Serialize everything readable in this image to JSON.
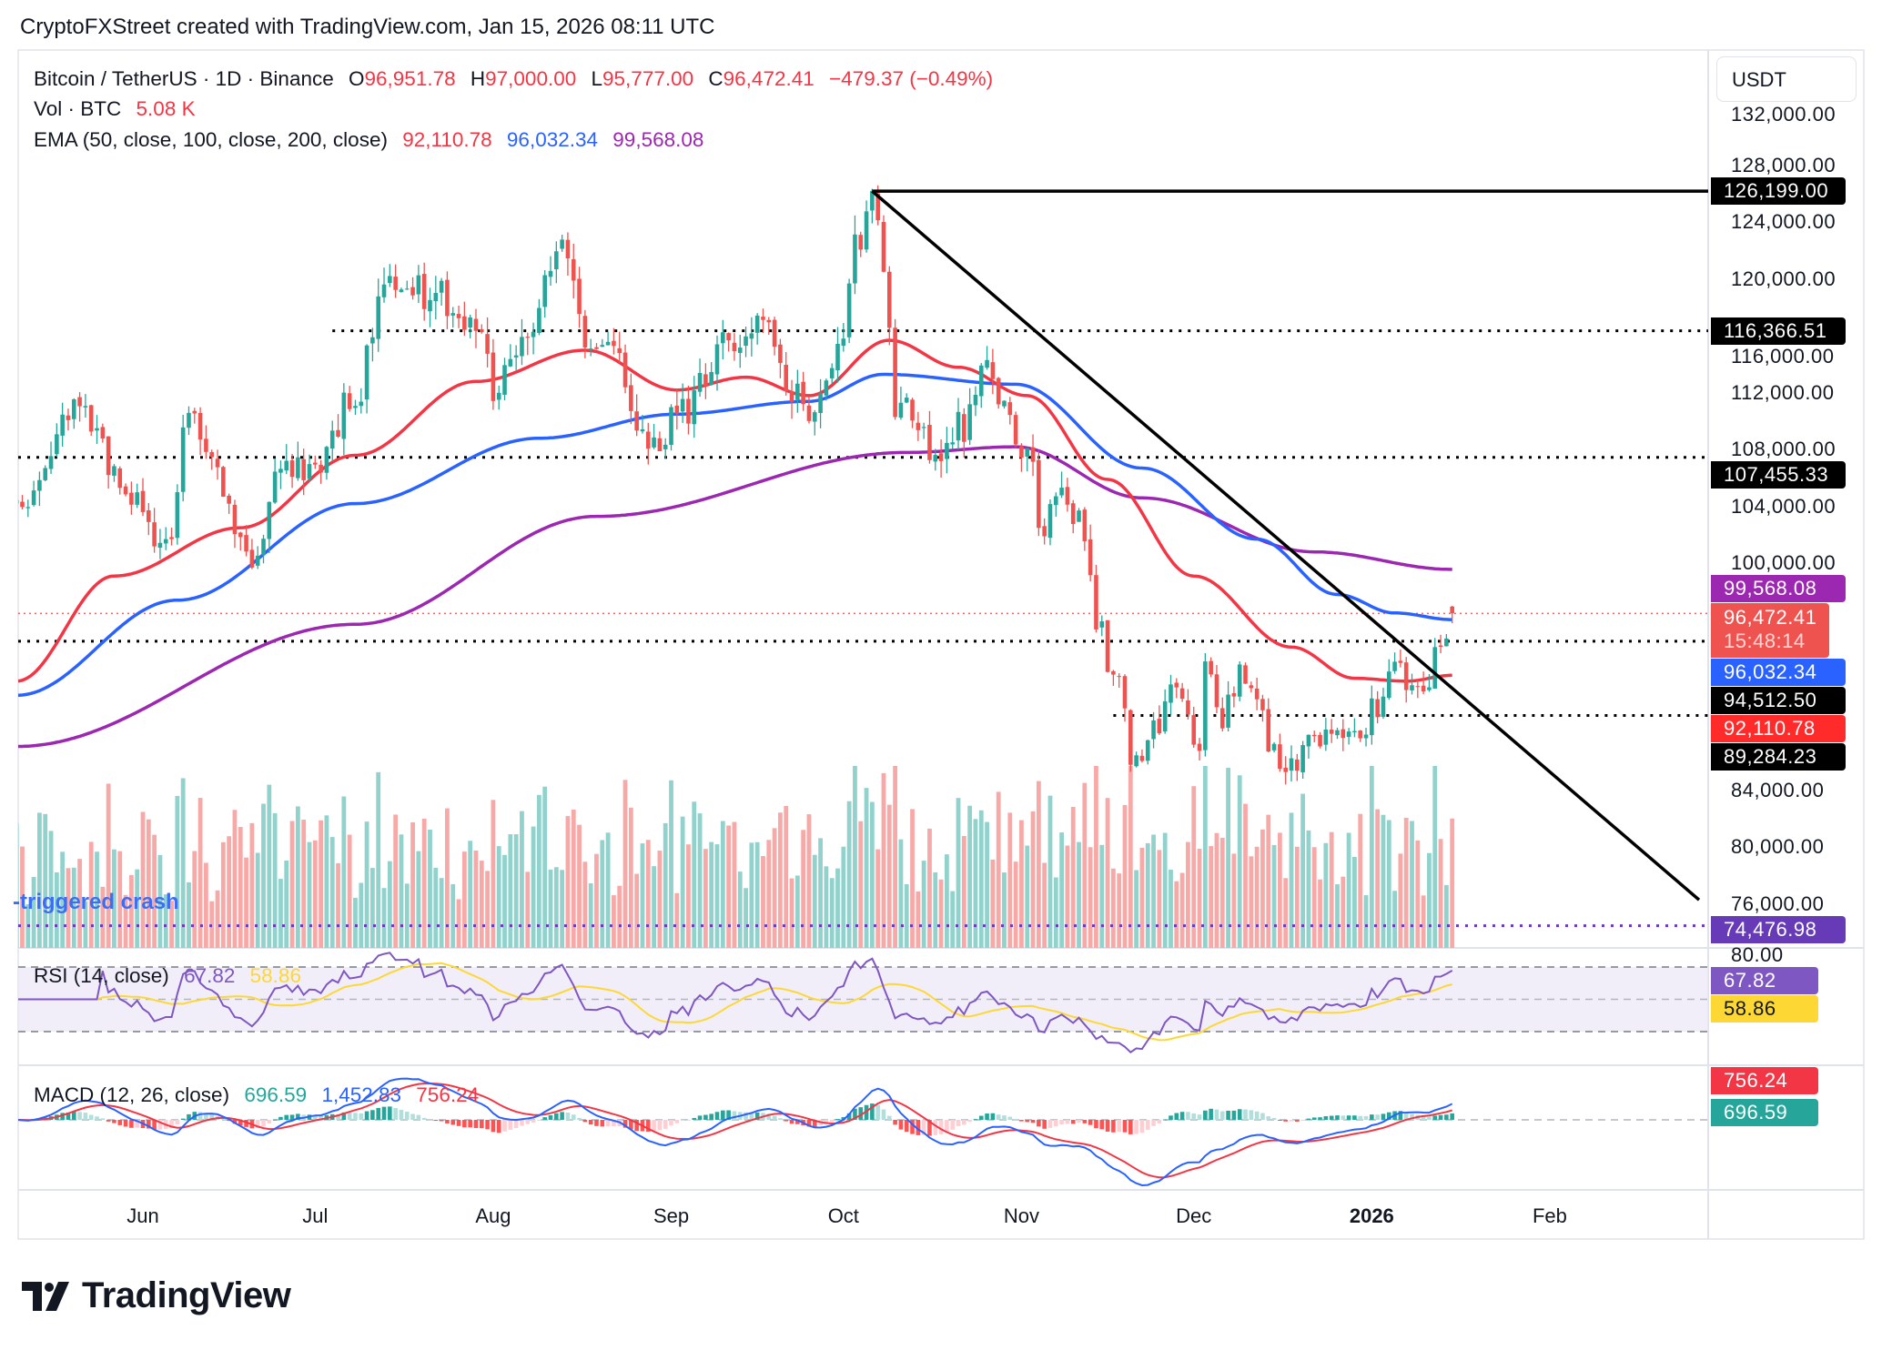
{
  "header": {
    "attribution": "CryptoFXStreet created with TradingView.com, Jan 15, 2026 08:11 UTC"
  },
  "legend": {
    "symbol": "Bitcoin / TetherUS · 1D · Binance",
    "o_label": "O",
    "o": "96,951.78",
    "h_label": "H",
    "h": "97,000.00",
    "l_label": "L",
    "l": "95,777.00",
    "c_label": "C",
    "c": "96,472.41",
    "change": "−479.37 (−0.49%)",
    "vol_label": "Vol · BTC",
    "vol": "5.08 K",
    "ema_label": "EMA (50, close, 100, close, 200, close)",
    "ema50": "92,110.78",
    "ema100": "96,032.34",
    "ema200": "99,568.08"
  },
  "price_axis": {
    "currency": "USDT",
    "ticks": [
      "132,000.00",
      "128,000.00",
      "124,000.00",
      "120,000.00",
      "116,000.00",
      "112,000.00",
      "108,000.00",
      "104,000.00",
      "100,000.00",
      "84,000.00",
      "80,000.00",
      "76,000.00"
    ],
    "rsi_tick": "80.00",
    "badges": [
      {
        "text": "126,199.00",
        "price": 126199,
        "bg": "#000000",
        "fg": "#ffffff"
      },
      {
        "text": "116,366.51",
        "price": 116366.51,
        "bg": "#000000",
        "fg": "#ffffff"
      },
      {
        "text": "107,455.33",
        "price": 107455.33,
        "bg": "#000000",
        "fg": "#ffffff"
      },
      {
        "text": "99,568.08",
        "price": 99568.08,
        "bg": "#9c27b0",
        "fg": "#ffffff"
      },
      {
        "text": "96,032.34",
        "price": 95650,
        "bg": "#2962ff",
        "fg": "#ffffff"
      },
      {
        "text": "94,512.50",
        "price": 93990,
        "bg": "#000000",
        "fg": "#ffffff"
      },
      {
        "text": "92,110.78",
        "price": 92330,
        "bg": "#ff2a2a",
        "fg": "#ffffff"
      },
      {
        "text": "89,284.23",
        "price": 90670,
        "bg": "#000000",
        "fg": "#ffffff"
      },
      {
        "text": "74,476.98",
        "price": 74476.98,
        "bg": "#673ab7",
        "fg": "#ffffff"
      }
    ],
    "last_price_badge": {
      "text": "96,472.41",
      "countdown": "15:48:14",
      "price": 96472.41,
      "bg": "#ef5350"
    }
  },
  "time_axis": [
    {
      "label": "Jun",
      "date": "2025-06-01"
    },
    {
      "label": "Jul",
      "date": "2025-07-01"
    },
    {
      "label": "Aug",
      "date": "2025-08-01"
    },
    {
      "label": "Sep",
      "date": "2025-09-01"
    },
    {
      "label": "Oct",
      "date": "2025-10-01"
    },
    {
      "label": "Nov",
      "date": "2025-11-01"
    },
    {
      "label": "Dec",
      "date": "2025-12-01"
    },
    {
      "label": "2026",
      "date": "2026-01-01",
      "bold": true
    },
    {
      "label": "Feb",
      "date": "2026-02-01"
    }
  ],
  "annotation": "-triggered crash",
  "rsi": {
    "label": "RSI (14, close)",
    "value": "67.82",
    "ma": "58.86",
    "value_badge": "67.82",
    "ma_badge": "58.86",
    "colors": {
      "rsi": "#7e57c2",
      "ma": "#fdd835"
    }
  },
  "macd": {
    "label": "MACD (12, 26, close)",
    "hist": "696.59",
    "macd": "1,452.83",
    "signal": "756.24",
    "hist_badge": "696.59",
    "signal_badge": "756.24",
    "colors": {
      "macd": "#2962ff",
      "signal": "#f23645",
      "hist_up": "#26a69a",
      "hist_down": "#ff5252"
    }
  },
  "brand": "TradingView",
  "chart_data": {
    "type": "candlestick",
    "title": "Bitcoin / TetherUS · 1D · Binance",
    "ylim": [
      72000,
      133000
    ],
    "colors": {
      "up": "#26a69a",
      "down": "#ef5350",
      "ema50": "#f23645",
      "ema100": "#2962ff",
      "ema200": "#9c27b0"
    },
    "last_candle": {
      "date": "2026-01-15",
      "open": 96951.78,
      "high": 97000.0,
      "low": 95777.0,
      "close": 96472.41
    },
    "close_path": [
      {
        "date": "2025-05-10",
        "close": 104200
      },
      {
        "date": "2025-05-21",
        "close": 110900
      },
      {
        "date": "2025-05-30",
        "close": 104200
      },
      {
        "date": "2025-06-05",
        "close": 101200
      },
      {
        "date": "2025-06-09",
        "close": 110100
      },
      {
        "date": "2025-06-21",
        "close": 100000
      },
      {
        "date": "2025-06-24",
        "close": 105900
      },
      {
        "date": "2025-07-01",
        "close": 107100
      },
      {
        "date": "2025-07-08",
        "close": 111800
      },
      {
        "date": "2025-07-13",
        "close": 119400
      },
      {
        "date": "2025-07-21",
        "close": 119000
      },
      {
        "date": "2025-07-29",
        "close": 116900
      },
      {
        "date": "2025-08-01",
        "close": 112600
      },
      {
        "date": "2025-08-06",
        "close": 116000
      },
      {
        "date": "2025-08-13",
        "close": 123200
      },
      {
        "date": "2025-08-18",
        "close": 114300
      },
      {
        "date": "2025-08-22",
        "close": 115200
      },
      {
        "date": "2025-08-28",
        "close": 108000
      },
      {
        "date": "2025-09-03",
        "close": 110500
      },
      {
        "date": "2025-09-11",
        "close": 116000
      },
      {
        "date": "2025-09-17",
        "close": 116400
      },
      {
        "date": "2025-09-22",
        "close": 112200
      },
      {
        "date": "2025-09-25",
        "close": 109300
      },
      {
        "date": "2025-09-30",
        "close": 114300
      },
      {
        "date": "2025-10-03",
        "close": 122800
      },
      {
        "date": "2025-10-06",
        "close": 124900
      },
      {
        "date": "2025-10-08",
        "close": 121500
      },
      {
        "date": "2025-10-10",
        "close": 111000
      },
      {
        "date": "2025-10-14",
        "close": 110100
      },
      {
        "date": "2025-10-17",
        "close": 107100
      },
      {
        "date": "2025-10-22",
        "close": 109700
      },
      {
        "date": "2025-10-26",
        "close": 114300
      },
      {
        "date": "2025-10-30",
        "close": 109700
      },
      {
        "date": "2025-11-03",
        "close": 107100
      },
      {
        "date": "2025-11-04",
        "close": 101700
      },
      {
        "date": "2025-11-08",
        "close": 105000
      },
      {
        "date": "2025-11-12",
        "close": 102500
      },
      {
        "date": "2025-11-14",
        "close": 95700
      },
      {
        "date": "2025-11-17",
        "close": 92400
      },
      {
        "date": "2025-11-21",
        "close": 85600
      },
      {
        "date": "2025-11-24",
        "close": 88100
      },
      {
        "date": "2025-11-28",
        "close": 91100
      },
      {
        "date": "2025-12-02",
        "close": 86800
      },
      {
        "date": "2025-12-03",
        "close": 92300
      },
      {
        "date": "2025-12-06",
        "close": 89200
      },
      {
        "date": "2025-12-09",
        "close": 92300
      },
      {
        "date": "2025-12-12",
        "close": 90000
      },
      {
        "date": "2025-12-15",
        "close": 86500
      },
      {
        "date": "2025-12-18",
        "close": 85600
      },
      {
        "date": "2025-12-22",
        "close": 88100
      },
      {
        "date": "2025-12-29",
        "close": 87300
      },
      {
        "date": "2026-01-02",
        "close": 90000
      },
      {
        "date": "2026-01-05",
        "close": 93600
      },
      {
        "date": "2026-01-08",
        "close": 90500
      },
      {
        "date": "2026-01-11",
        "close": 91300
      },
      {
        "date": "2026-01-13",
        "close": 95000
      },
      {
        "date": "2026-01-15",
        "close": 96472.41
      }
    ],
    "ema50": [
      {
        "date": "2025-05-10",
        "v": 91700
      },
      {
        "date": "2025-05-27",
        "v": 99100
      },
      {
        "date": "2025-06-18",
        "v": 102500
      },
      {
        "date": "2025-07-08",
        "v": 107600
      },
      {
        "date": "2025-07-29",
        "v": 112800
      },
      {
        "date": "2025-08-17",
        "v": 115000
      },
      {
        "date": "2025-09-02",
        "v": 112200
      },
      {
        "date": "2025-09-14",
        "v": 113100
      },
      {
        "date": "2025-09-25",
        "v": 111800
      },
      {
        "date": "2025-10-09",
        "v": 115700
      },
      {
        "date": "2025-10-21",
        "v": 113800
      },
      {
        "date": "2025-11-02",
        "v": 111800
      },
      {
        "date": "2025-11-16",
        "v": 105900
      },
      {
        "date": "2025-12-01",
        "v": 99100
      },
      {
        "date": "2025-12-18",
        "v": 94100
      },
      {
        "date": "2025-12-29",
        "v": 91900
      },
      {
        "date": "2026-01-07",
        "v": 91700
      },
      {
        "date": "2026-01-15",
        "v": 92110.78
      }
    ],
    "ema100": [
      {
        "date": "2025-05-10",
        "v": 90700
      },
      {
        "date": "2025-06-07",
        "v": 97400
      },
      {
        "date": "2025-07-08",
        "v": 104200
      },
      {
        "date": "2025-08-09",
        "v": 108800
      },
      {
        "date": "2025-09-02",
        "v": 110500
      },
      {
        "date": "2025-09-25",
        "v": 111400
      },
      {
        "date": "2025-10-08",
        "v": 113300
      },
      {
        "date": "2025-10-31",
        "v": 112600
      },
      {
        "date": "2025-11-22",
        "v": 106700
      },
      {
        "date": "2025-12-12",
        "v": 101700
      },
      {
        "date": "2025-12-26",
        "v": 97800
      },
      {
        "date": "2026-01-05",
        "v": 96500
      },
      {
        "date": "2026-01-15",
        "v": 96032.34
      }
    ],
    "ema200": [
      {
        "date": "2025-05-10",
        "v": 87100
      },
      {
        "date": "2025-07-08",
        "v": 95700
      },
      {
        "date": "2025-08-19",
        "v": 103300
      },
      {
        "date": "2025-10-12",
        "v": 107800
      },
      {
        "date": "2025-10-31",
        "v": 108200
      },
      {
        "date": "2025-11-22",
        "v": 104600
      },
      {
        "date": "2025-12-22",
        "v": 100800
      },
      {
        "date": "2026-01-15",
        "v": 99568.08
      }
    ],
    "levels": [
      {
        "price": 126199,
        "style": "solid",
        "from": "2025-10-06",
        "color": "#000000"
      },
      {
        "price": 116366.51,
        "style": "dotted",
        "from": "2025-07-04",
        "color": "#000000"
      },
      {
        "price": 107455.33,
        "style": "dotted",
        "color": "#000000"
      },
      {
        "price": 94512.5,
        "style": "dotted",
        "color": "#000000"
      },
      {
        "price": 89284.23,
        "style": "dotted",
        "from": "2025-11-17",
        "color": "#000000"
      },
      {
        "price": 74476.98,
        "style": "dotted",
        "color": "#673ab7"
      },
      {
        "price": 96472.41,
        "style": "last",
        "color": "#ef5350"
      }
    ],
    "trendline": {
      "from": {
        "date": "2025-10-06",
        "price": 126199
      },
      "to": {
        "date": "2026-02-27",
        "price": 76300
      }
    },
    "rsi_levels": [
      70,
      50,
      30
    ],
    "rsi_last": 67.82,
    "macd_last": {
      "macd": 1452.83,
      "signal": 756.24,
      "hist": 696.59
    }
  }
}
